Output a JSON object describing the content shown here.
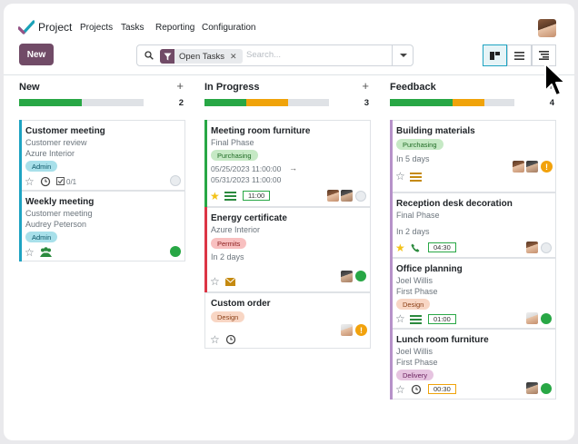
{
  "app": {
    "name": "Project"
  },
  "menu": [
    "Projects",
    "Tasks",
    "Reporting",
    "Configuration"
  ],
  "toolbar": {
    "new_label": "New"
  },
  "search": {
    "facet_label": "Open Tasks",
    "placeholder": "Search..."
  },
  "colors": {
    "brand": "#714b67",
    "green": "#28a745",
    "orange": "#f0a30a",
    "grey": "#dfe2e6"
  },
  "columns": [
    {
      "title": "New",
      "count": "2",
      "progress": {
        "done": 0.5,
        "in_progress": 0.0
      }
    },
    {
      "title": "In Progress",
      "count": "3",
      "progress": {
        "done": 0.33,
        "in_progress": 0.33
      }
    },
    {
      "title": "Feedback",
      "count": "4",
      "progress": {
        "done": 0.5,
        "in_progress": 0.25
      }
    }
  ],
  "cards": {
    "customer_meeting": {
      "title": "Customer meeting",
      "project": "Customer review",
      "customer": "Azure Interior",
      "tag": "Admin",
      "subtasks": "0/1"
    },
    "weekly_meeting": {
      "title": "Weekly meeting",
      "project": "Customer meeting",
      "customer": "Audrey Peterson",
      "tag": "Admin"
    },
    "meeting_room": {
      "title": "Meeting room furniture",
      "project": "Final Phase",
      "tag": "Purchasing",
      "date_start": "05/25/2023 11:00:00",
      "date_end": "05/31/2023 11:00:00",
      "time": "11:00"
    },
    "energy_cert": {
      "title": "Energy certificate",
      "customer": "Azure Interior",
      "tag": "Permits",
      "deadline": "In 2 days"
    },
    "custom_order": {
      "title": "Custom order",
      "tag": "Design"
    },
    "building_materials": {
      "title": "Building materials",
      "tag": "Purchasing",
      "deadline": "In 5 days"
    },
    "reception_desk": {
      "title": "Reception desk decoration",
      "project": "Final Phase",
      "deadline": "In 2 days",
      "time": "04:30"
    },
    "office_planning": {
      "title": "Office planning",
      "customer": "Joel Willis",
      "project": "First Phase",
      "tag": "Design",
      "time": "01:00"
    },
    "lunch_room": {
      "title": "Lunch room furniture",
      "customer": "Joel Willis",
      "project": "First Phase",
      "tag": "Delivery",
      "time": "00:30"
    }
  },
  "icons": [
    "search-icon",
    "filter-icon",
    "kanban-icon",
    "list-icon",
    "activity-icon",
    "star-icon",
    "clock-icon",
    "phone-icon",
    "email-icon",
    "meeting-icon",
    "warning-icon"
  ]
}
